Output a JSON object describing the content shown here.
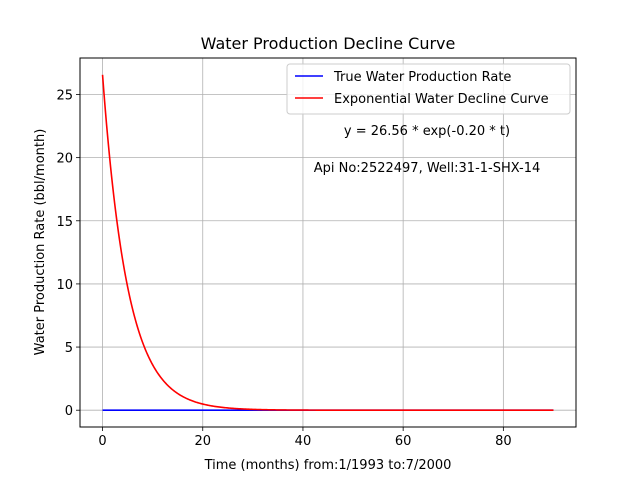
{
  "chart_data": {
    "type": "line",
    "title": "Water Production Decline Curve",
    "xlabel": "Time (months) from:1/1993 to:7/2000",
    "ylabel": "Water Production Rate (bbl/month)",
    "xlim": [
      -4.5,
      94.5
    ],
    "ylim": [
      -1.33,
      27.89
    ],
    "x_ticks": [
      0,
      20,
      40,
      60,
      80
    ],
    "y_ticks": [
      0,
      5,
      10,
      15,
      20,
      25
    ],
    "grid": true,
    "legend_position": "top-right",
    "series": [
      {
        "name": "True Water Production Rate",
        "color": "#0000ff",
        "x": [
          0,
          90
        ],
        "values": [
          0,
          0
        ]
      },
      {
        "name": "Exponential Water Decline Curve",
        "color": "#ff0000",
        "function": {
          "a": 26.56,
          "b": -0.2
        },
        "x_range": [
          0,
          90
        ]
      }
    ],
    "annotations": [
      "y = 26.56 * exp(-0.20 * t)",
      "Api No:2522497, Well:31-1-SHX-14"
    ]
  }
}
